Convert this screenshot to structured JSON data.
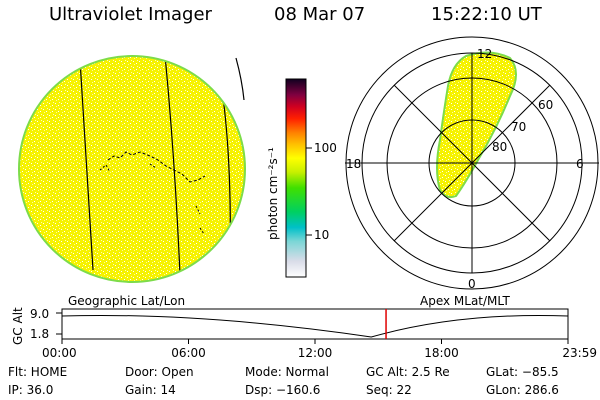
{
  "header": {
    "title": "Ultraviolet Imager",
    "date": "08 Mar 07",
    "time": "15:22:10 UT"
  },
  "colorbar": {
    "unit_label": "photon cm⁻²s⁻¹",
    "ticks": [
      "100",
      "10"
    ]
  },
  "polar_plot": {
    "mlt_labels": {
      "top": "12",
      "left": "18",
      "right": "6",
      "bottom": "0"
    },
    "lat_labels": [
      "60",
      "70",
      "80"
    ]
  },
  "panel_labels": {
    "left": "Geographic Lat/Lon",
    "right": "Apex MLat/MLT"
  },
  "altitude_plot": {
    "ylabel": "GC Alt",
    "yticks": [
      "9.0",
      "1.8"
    ],
    "xticks": [
      "00:00",
      "06:00",
      "12:00",
      "18:00",
      "23:59"
    ],
    "current_time_fraction": 0.6404,
    "min_time_fraction": 0.6111
  },
  "info": {
    "flt": "Flt: HOME",
    "ip": "IP: 36.0",
    "door": "Door: Open",
    "gain": "Gain: 14",
    "mode": "Mode: Normal",
    "dsp": "Dsp: −160.6",
    "gc_alt": "GC Alt: 2.5 Re",
    "seq": "Seq: 22",
    "glat": "GLat: −85.5",
    "glon": "GLon: 286.6"
  },
  "colors": {
    "disk_fill": "#f6f200",
    "disk_edge": "#7ddc4a",
    "oval_fill": "#eeee10",
    "marker": "#e00000"
  }
}
